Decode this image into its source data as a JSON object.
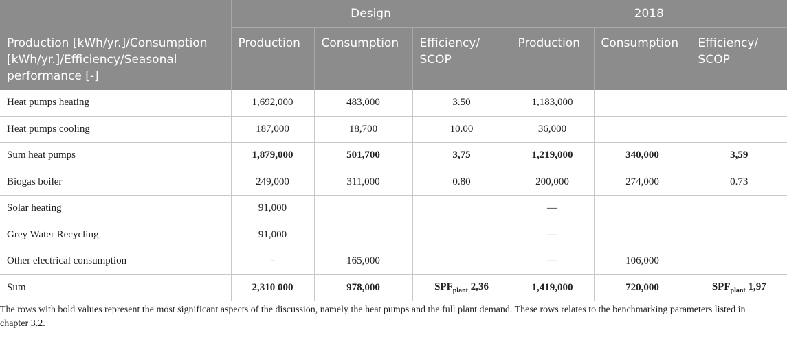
{
  "header": {
    "groups": [
      "Design",
      "2018"
    ],
    "row_label": "Production [kWh/yr.]/Consumption [kWh/yr.]/Efficiency/Seasonal performance [-]",
    "columns": [
      "Production",
      "Consumption",
      "Efficiency/ SCOP",
      "Production",
      "Consumption",
      "Efficiency/ SCOP"
    ]
  },
  "table": {
    "rows": [
      {
        "label": "Heat pumps heating",
        "bold": false,
        "cells": [
          "1,692,000",
          "483,000",
          "3.50",
          "1,183,000",
          null,
          null
        ]
      },
      {
        "label": "Heat pumps cooling",
        "bold": false,
        "cells": [
          "187,000",
          "18,700",
          "10.00",
          "36,000",
          null,
          null
        ]
      },
      {
        "label": "Sum heat pumps",
        "bold": true,
        "cells": [
          "1,879,000",
          "501,700",
          "3,75",
          "1,219,000",
          "340,000",
          "3,59"
        ]
      },
      {
        "label": "Biogas boiler",
        "bold": false,
        "cells": [
          "249,000",
          "311,000",
          "0.80",
          "200,000",
          "274,000",
          "0.73"
        ]
      },
      {
        "label": "Solar heating",
        "bold": false,
        "cells": [
          "91,000",
          null,
          null,
          "—",
          null,
          null
        ]
      },
      {
        "label": "Grey Water Recycling",
        "bold": false,
        "cells": [
          "91,000",
          null,
          null,
          "—",
          null,
          null
        ]
      },
      {
        "label": "Other electrical consumption",
        "bold": false,
        "cells": [
          "-",
          "165,000",
          null,
          "—",
          "106,000",
          null
        ]
      },
      {
        "label": "Sum",
        "bold": true,
        "cells": [
          "2,310 000",
          "978,000",
          {
            "main": "SPF",
            "sub": "plant",
            "value": "2,36"
          },
          "1,419,000",
          "720,000",
          {
            "main": "SPF",
            "sub": "plant",
            "value": "1,97"
          }
        ]
      }
    ]
  },
  "footnote": "The rows with bold values represent the most significant aspects of the discussion, namely the heat pumps and the full plant demand. These rows relates to the benchmarking parameters listed in chapter 3.2."
}
